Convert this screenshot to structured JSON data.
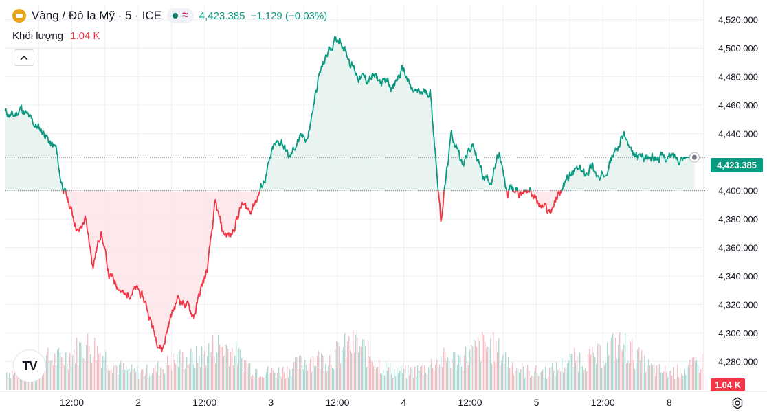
{
  "header": {
    "symbol_title": "Vàng / Đô la Mỹ · 5 · ICE",
    "last_price": "4,423.385",
    "change": "−1.129 (−0.03%)",
    "volume_label": "Khối lượng",
    "volume_value": "1.04 K",
    "collapse_symbol": "^",
    "logo_text": "TV"
  },
  "price_tag": "4,423.385",
  "volume_tag": "1.04 K",
  "colors": {
    "up": "#089981",
    "down": "#f23645",
    "up_fill": "#e7f3f0",
    "down_fill": "#fde7e9",
    "grid": "#eceff3",
    "axis_text": "#131722",
    "symbol_icon": "#e8a317"
  },
  "icons": {
    "symbol": "gold-coin-icon",
    "status": "market-open-dot-icon",
    "wave": "approx-wave-icon",
    "settings": "gear-icon",
    "collapse": "chevron-up-icon"
  },
  "chart_data": {
    "type": "line",
    "baseline": 4400,
    "last_value": 4423.385,
    "ylim": [
      4260,
      4530
    ],
    "y_ticks": [
      4280,
      4300,
      4320,
      4340,
      4360,
      4380,
      4400,
      4420,
      4440,
      4460,
      4480,
      4500,
      4520
    ],
    "y_tick_labels": [
      "4,280.000",
      "4,300.000",
      "4,320.000",
      "4,340.000",
      "4,360.000",
      "4,380.000",
      "4,400.000",
      "4,420.000",
      "4,440.000",
      "4,460.000",
      "4,480.000",
      "4,500.000",
      "4,520.000"
    ],
    "x_ticks": [
      {
        "t": 0.5,
        "label": "12:00"
      },
      {
        "t": 1.0,
        "label": "2"
      },
      {
        "t": 1.5,
        "label": "12:00"
      },
      {
        "t": 2.0,
        "label": "3"
      },
      {
        "t": 2.5,
        "label": "12:00"
      },
      {
        "t": 3.0,
        "label": "4"
      },
      {
        "t": 3.5,
        "label": "12:00"
      },
      {
        "t": 4.0,
        "label": "5"
      },
      {
        "t": 4.5,
        "label": "12:00"
      },
      {
        "t": 5.0,
        "label": "8"
      }
    ],
    "price": {
      "t": [
        0.0,
        0.06,
        0.12,
        0.2,
        0.3,
        0.34,
        0.38,
        0.41,
        0.45,
        0.5,
        0.55,
        0.6,
        0.66,
        0.72,
        0.78,
        0.84,
        0.9,
        0.95,
        1.0,
        1.06,
        1.12,
        1.18,
        1.24,
        1.3,
        1.36,
        1.42,
        1.47,
        1.52,
        1.58,
        1.64,
        1.7,
        1.74,
        1.78,
        1.84,
        1.9,
        1.96,
        2.02,
        2.08,
        2.14,
        2.2,
        2.28,
        2.36,
        2.44,
        2.52,
        2.6,
        2.66,
        2.72,
        2.78,
        2.84,
        2.88,
        2.92,
        2.96,
        3.0,
        3.06,
        3.12,
        3.2,
        3.28,
        3.36,
        3.44,
        3.52,
        3.6,
        3.66,
        3.72,
        3.78,
        3.8,
        3.82,
        3.84,
        3.88,
        3.94,
        4.02,
        4.1,
        4.18,
        4.24,
        4.3,
        4.36,
        4.42,
        4.48,
        4.54,
        4.6,
        4.66,
        4.72,
        4.78,
        4.86,
        4.94,
        5.0,
        5.06,
        5.12,
        5.16,
        5.2,
        5.24
      ],
      "y": [
        4455,
        4452,
        4458,
        4448,
        4440,
        4432,
        4430,
        4410,
        4398,
        4385,
        4370,
        4380,
        4348,
        4372,
        4340,
        4335,
        4325,
        4330,
        4330,
        4320,
        4300,
        4288,
        4310,
        4325,
        4320,
        4312,
        4330,
        4344,
        4390,
        4370,
        4368,
        4380,
        4390,
        4386,
        4396,
        4410,
        4430,
        4435,
        4422,
        4435,
        4438,
        4480,
        4500,
        4508,
        4490,
        4480,
        4478,
        4480,
        4475,
        4478,
        4472,
        4480,
        4485,
        4470,
        4468,
        4470,
        4380,
        4440,
        4420,
        4432,
        4410,
        4408,
        4425,
        4395,
        4405,
        4400,
        4400,
        4398,
        4402,
        4390,
        4385,
        4400,
        4408,
        4415,
        4412,
        4418,
        4406,
        4420,
        4428,
        4440,
        4423.385,
        4423.385,
        4423.385,
        4423.385,
        4423.385,
        4423.385,
        4423.385,
        4423.385,
        4423.385,
        4423.385
      ]
    },
    "volume": {
      "description_free": true
    }
  }
}
